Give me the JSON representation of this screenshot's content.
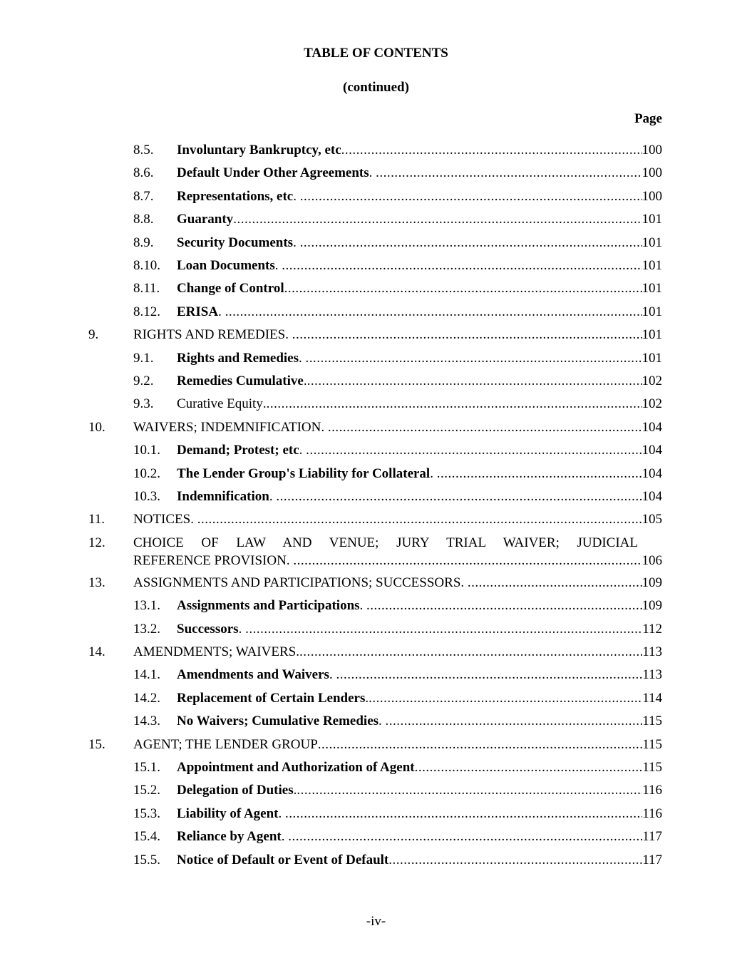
{
  "header": {
    "title": "TABLE OF CONTENTS",
    "continued": "(continued)",
    "page_label": "Page"
  },
  "entries": [
    {
      "num": "8.5.",
      "title": "Involuntary Bankruptcy, etc",
      "suffix": "",
      "bold": true,
      "level": 2,
      "page": "100"
    },
    {
      "num": "8.6.",
      "title": "Default Under Other Agreements",
      "suffix": ". ",
      "bold": true,
      "level": 2,
      "page": "100"
    },
    {
      "num": "8.7.",
      "title": "Representations, etc",
      "suffix": ". ",
      "bold": true,
      "level": 2,
      "page": "100"
    },
    {
      "num": "8.8.",
      "title": "Guaranty",
      "suffix": "",
      "bold": true,
      "level": 2,
      "page": "101"
    },
    {
      "num": "8.9.",
      "title": "Security Documents",
      "suffix": ". ",
      "bold": true,
      "level": 2,
      "page": "101"
    },
    {
      "num": "8.10.",
      "title": "Loan Documents",
      "suffix": ". ",
      "bold": true,
      "level": 2,
      "page": "101"
    },
    {
      "num": "8.11.",
      "title": "Change of Control",
      "suffix": "",
      "bold": true,
      "level": 2,
      "page": "101"
    },
    {
      "num": "8.12.",
      "title": "ERISA",
      "suffix": ". ",
      "bold": true,
      "level": 2,
      "page": "101"
    },
    {
      "num": "9.",
      "title": "RIGHTS AND REMEDIES",
      "suffix": ". ",
      "bold": false,
      "level": 1,
      "page": "101"
    },
    {
      "num": "9.1.",
      "title": "Rights and Remedies",
      "suffix": ". ",
      "bold": true,
      "level": 2,
      "page": "101"
    },
    {
      "num": "9.2.",
      "title": "Remedies Cumulative",
      "suffix": ".",
      "bold": true,
      "level": 2,
      "page": "102"
    },
    {
      "num": "9.3.",
      "title": "Curative Equity",
      "suffix": ".",
      "bold": false,
      "level": 2,
      "page": "102"
    },
    {
      "num": "10.",
      "title": "WAIVERS; INDEMNIFICATION",
      "suffix": ". ",
      "bold": false,
      "level": 1,
      "page": "104"
    },
    {
      "num": "10.1.",
      "title": "Demand; Protest; etc",
      "suffix": ". ",
      "bold": true,
      "level": 2,
      "page": "104"
    },
    {
      "num": "10.2.",
      "title": "The Lender Group's Liability for Collateral",
      "suffix": ". ",
      "bold": true,
      "level": 2,
      "page": "104"
    },
    {
      "num": "10.3.",
      "title": "Indemnification",
      "suffix": ". ",
      "bold": true,
      "level": 2,
      "page": "104"
    },
    {
      "num": "11.",
      "title": "NOTICES",
      "suffix": ". ",
      "bold": false,
      "level": 1,
      "page": "105"
    },
    {
      "num": "12.",
      "title_first_line": "CHOICE OF LAW AND VENUE; JURY TRIAL WAIVER; JUDICIAL",
      "title": "REFERENCE PROVISION",
      "suffix": ". ",
      "bold": false,
      "level": 1,
      "page": "106"
    },
    {
      "num": "13.",
      "title": "ASSIGNMENTS AND PARTICIPATIONS; SUCCESSORS",
      "suffix": ". ",
      "bold": false,
      "level": 1,
      "page": "109"
    },
    {
      "num": "13.1.",
      "title": "Assignments and Participations",
      "suffix": ". ",
      "bold": true,
      "level": 2,
      "page": "109"
    },
    {
      "num": "13.2.",
      "title": "Successors",
      "suffix": ". ",
      "bold": true,
      "level": 2,
      "page": "112"
    },
    {
      "num": "14.",
      "title": "AMENDMENTS; WAIVERS",
      "suffix": ".",
      "bold": false,
      "level": 1,
      "page": "113"
    },
    {
      "num": "14.1.",
      "title": "Amendments and Waivers",
      "suffix": ". ",
      "bold": true,
      "level": 2,
      "page": "113"
    },
    {
      "num": "14.2.",
      "title": "Replacement of Certain Lenders",
      "suffix": ".",
      "bold": true,
      "level": 2,
      "page": "114"
    },
    {
      "num": "14.3.",
      "title": "No Waivers; Cumulative Remedies",
      "suffix": ". ",
      "bold": true,
      "level": 2,
      "page": "115"
    },
    {
      "num": "15.",
      "title": "AGENT; THE LENDER GROUP",
      "suffix": "",
      "bold": false,
      "level": 1,
      "page": "115"
    },
    {
      "num": "15.1.",
      "title": "Appointment and Authorization of Agent",
      "suffix": "",
      "bold": true,
      "level": 2,
      "page": "115"
    },
    {
      "num": "15.2.",
      "title": "Delegation of Duties",
      "suffix": ".",
      "bold": true,
      "level": 2,
      "page": "116"
    },
    {
      "num": "15.3.",
      "title": "Liability of Agent",
      "suffix": ". ",
      "bold": true,
      "level": 2,
      "page": "116"
    },
    {
      "num": "15.4.",
      "title": "Reliance by Agent",
      "suffix": ". ",
      "bold": true,
      "level": 2,
      "page": "117"
    },
    {
      "num": "15.5.",
      "title": "Notice of Default or Event of Default",
      "suffix": "",
      "bold": true,
      "level": 2,
      "page": "117"
    }
  ],
  "footer": {
    "page_number": "-iv-"
  }
}
